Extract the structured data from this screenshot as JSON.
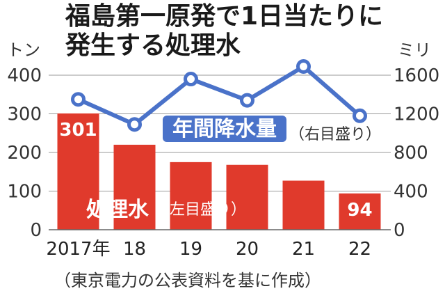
{
  "title_line1": "福島第一原発で1日当たりに",
  "title_line2": "発生する処理水",
  "source": "（東京電力の公表資料を基に作成）",
  "chart_data": {
    "type": "bar+line",
    "categories": [
      "2017年",
      "18",
      "19",
      "20",
      "21",
      "22"
    ],
    "series": [
      {
        "name": "処理水",
        "axis_note": "（左目盛り）",
        "kind": "bar",
        "unit": "トン",
        "values": [
          301,
          220,
          175,
          168,
          127,
          94
        ],
        "data_labels": [
          "301",
          "",
          "",
          "",
          "",
          "94"
        ],
        "color": "#e03a2c"
      },
      {
        "name": "年間降水量",
        "axis_note": "（右目盛り）",
        "kind": "line",
        "unit": "ミリ",
        "values": [
          1350,
          1090,
          1560,
          1340,
          1690,
          1180
        ],
        "color": "#4a72c9"
      }
    ],
    "y_left": {
      "unit": "トン",
      "ylim": [
        0,
        400
      ],
      "ticks": [
        "0",
        "100",
        "200",
        "300",
        "400"
      ]
    },
    "y_right": {
      "unit": "ミリ",
      "ylim": [
        0,
        1600
      ],
      "ticks": [
        "0",
        "400",
        "800",
        "1200",
        "1600"
      ]
    },
    "grid": true
  }
}
